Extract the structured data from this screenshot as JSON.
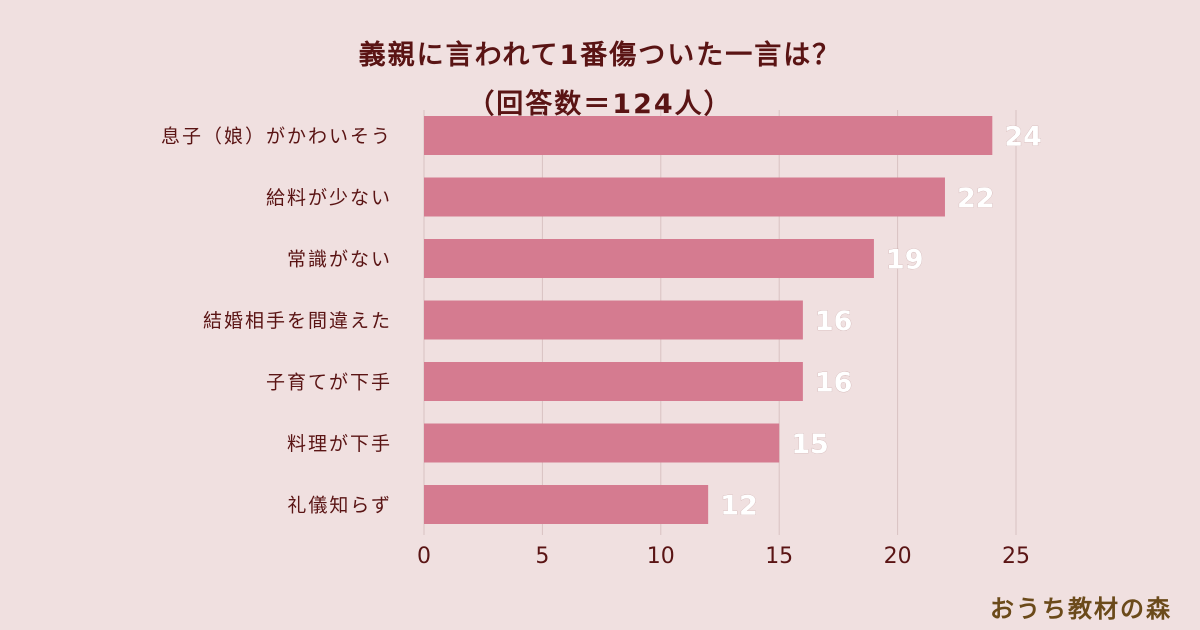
{
  "chart_data": {
    "type": "bar",
    "orientation": "horizontal",
    "title": "義親に言われて1番傷ついた一言は？",
    "subtitle": "（回答数＝124人）",
    "categories": [
      "息子（娘）がかわいそう",
      "給料が少ない",
      "常識がない",
      "結婚相手を間違えた",
      "子育てが下手",
      "料理が下手",
      "礼儀知らず"
    ],
    "values": [
      24,
      22,
      19,
      16,
      16,
      15,
      12
    ],
    "xlim": [
      0,
      25
    ],
    "xticks": [
      "0",
      "5",
      "10",
      "15",
      "20",
      "25"
    ],
    "grid": true,
    "bar_color": "#d57b90",
    "text_color": "#5a1414",
    "value_label_color": "#ffffff"
  },
  "brand": "おうち教材の森"
}
